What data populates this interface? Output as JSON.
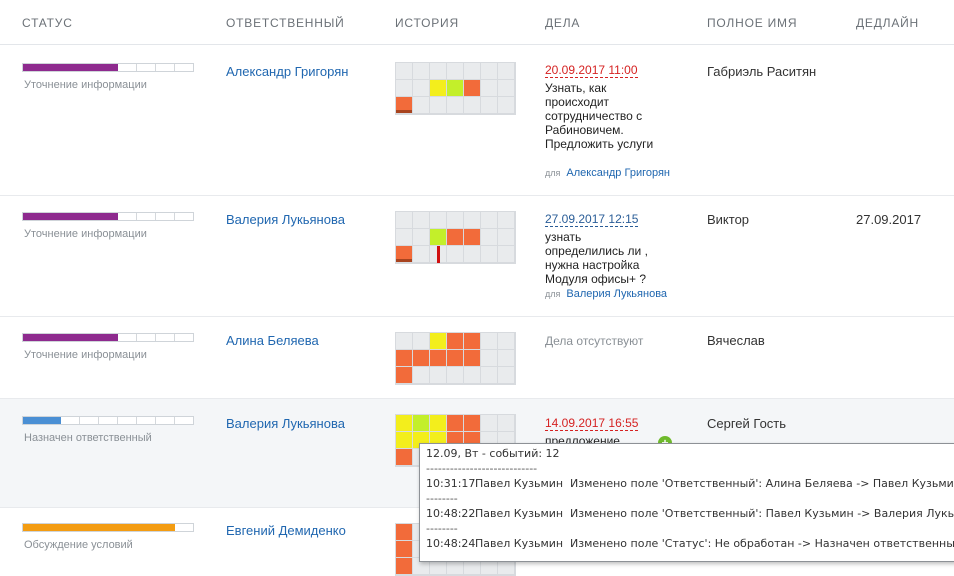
{
  "headers": {
    "status": "СТАТУС",
    "responsible": "ОТВЕТСТВЕННЫЙ",
    "history": "ИСТОРИЯ",
    "deals": "ДЕЛА",
    "full_name": "ПОЛНОЕ ИМЯ",
    "deadline": "ДЕДЛАЙН"
  },
  "colors": {
    "status_purple": "#8e2a8e",
    "status_blue": "#4a8fd4",
    "status_orange": "#f39c12",
    "cell_orange": "#f26b3a",
    "cell_yellow": "#f3ee1c",
    "cell_green": "#c3ef2a",
    "link": "#2067b0",
    "overdue": "#d52222"
  },
  "rows": [
    {
      "status_label": "Уточнение информации",
      "status_filled": 5,
      "status_total": 9,
      "responsible": "Александр Григорян",
      "deal_date": "20.09.2017 11:00",
      "deal_text": "Узнать, как происходит сотрудничество с Рабиновичем. Предложить услуги",
      "deal_for_prefix": "для",
      "deal_for": "Александр Григорян",
      "full_name": "Габриэль Раситян",
      "deadline": ""
    },
    {
      "status_label": "Уточнение информации",
      "status_filled": 5,
      "status_total": 9,
      "responsible": "Валерия Лукьянова",
      "deal_date": "27.09.2017 12:15",
      "deal_text": "узнать определились ли , нужна настройка Модуля офисы+ ?",
      "deal_for_prefix": "для",
      "deal_for": "Валерия Лукьянова",
      "full_name": "Виктор",
      "deadline": "27.09.2017"
    },
    {
      "status_label": "Уточнение информации",
      "status_filled": 5,
      "status_total": 9,
      "responsible": "Алина Беляева",
      "deal_none": "Дела отсутствуют",
      "full_name": "Вячеслав",
      "deadline": ""
    },
    {
      "status_label": "Назначен ответственный",
      "status_filled": 2,
      "status_total": 9,
      "responsible": "Валерия Лукьянова",
      "deal_date": "14.09.2017 16:55",
      "deal_text": "предложение",
      "full_name": "Сергей Гость",
      "deadline": ""
    },
    {
      "status_label": "Обсуждение условий",
      "status_filled": 8,
      "status_total": 9,
      "responsible": "Евгений Демиденко",
      "full_name": "",
      "deadline": ""
    }
  ],
  "tooltip": {
    "title": "12.09, Вт - событий: 12",
    "separator_long": "----------------------------",
    "separator_short": "--------",
    "entries": [
      {
        "time": "10:31:17",
        "who": "Павел Кузьмин",
        "what": "Изменено поле 'Ответственный': Алина Беляева -> Павел Кузьмин"
      },
      {
        "time": "10:48:22",
        "who": "Павел Кузьмин",
        "what": "Изменено поле 'Ответственный': Павел Кузьмин -> Валерия Лукьянова"
      },
      {
        "time": "10:48:24",
        "who": "Павел Кузьмин",
        "what": "Изменено поле 'Статус': Не обработан -> Назначен ответственный"
      }
    ]
  },
  "plus_icon": "+"
}
